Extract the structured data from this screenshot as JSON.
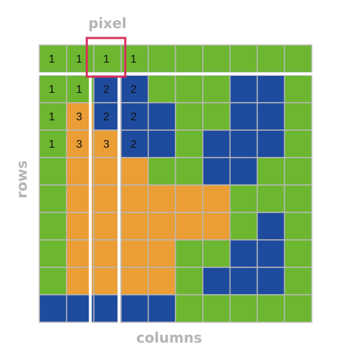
{
  "labels": {
    "pixel": "pixel",
    "rows": "rows",
    "columns": "columns"
  },
  "colors": {
    "1": "#6cb72f",
    "2": "#1f4b9e",
    "3": "#eb9e35",
    "grid_line": "#b8b8b8",
    "highlight": "#d62f5e",
    "label": "#b5b5b5"
  },
  "grid": [
    [
      1,
      1,
      1,
      1,
      1,
      1,
      1,
      1,
      1,
      1
    ],
    [
      1,
      1,
      2,
      2,
      1,
      1,
      1,
      2,
      2,
      1
    ],
    [
      1,
      3,
      2,
      2,
      2,
      1,
      1,
      2,
      2,
      1
    ],
    [
      1,
      3,
      3,
      2,
      2,
      1,
      2,
      2,
      2,
      1
    ],
    [
      1,
      3,
      3,
      3,
      1,
      1,
      2,
      2,
      1,
      1
    ],
    [
      1,
      3,
      3,
      3,
      3,
      3,
      3,
      1,
      1,
      1
    ],
    [
      1,
      3,
      3,
      3,
      3,
      3,
      3,
      1,
      2,
      1
    ],
    [
      1,
      3,
      3,
      3,
      3,
      1,
      1,
      2,
      2,
      1
    ],
    [
      1,
      3,
      3,
      3,
      3,
      1,
      2,
      2,
      2,
      1
    ],
    [
      2,
      2,
      2,
      2,
      2,
      1,
      1,
      1,
      1,
      1
    ]
  ],
  "numbered_cells": [
    {
      "row": 0,
      "col": 0,
      "text": "1"
    },
    {
      "row": 0,
      "col": 1,
      "text": "1"
    },
    {
      "row": 0,
      "col": 2,
      "text": "1"
    },
    {
      "row": 0,
      "col": 3,
      "text": "1"
    },
    {
      "row": 1,
      "col": 0,
      "text": "1"
    },
    {
      "row": 1,
      "col": 1,
      "text": "1"
    },
    {
      "row": 1,
      "col": 2,
      "text": "2"
    },
    {
      "row": 1,
      "col": 3,
      "text": "2"
    },
    {
      "row": 2,
      "col": 0,
      "text": "1"
    },
    {
      "row": 2,
      "col": 1,
      "text": "3"
    },
    {
      "row": 2,
      "col": 2,
      "text": "2"
    },
    {
      "row": 2,
      "col": 3,
      "text": "2"
    },
    {
      "row": 3,
      "col": 0,
      "text": "1"
    },
    {
      "row": 3,
      "col": 1,
      "text": "3"
    },
    {
      "row": 3,
      "col": 2,
      "text": "3"
    },
    {
      "row": 3,
      "col": 3,
      "text": "2"
    }
  ],
  "highlight_cell": {
    "row": 0,
    "col": 2
  }
}
